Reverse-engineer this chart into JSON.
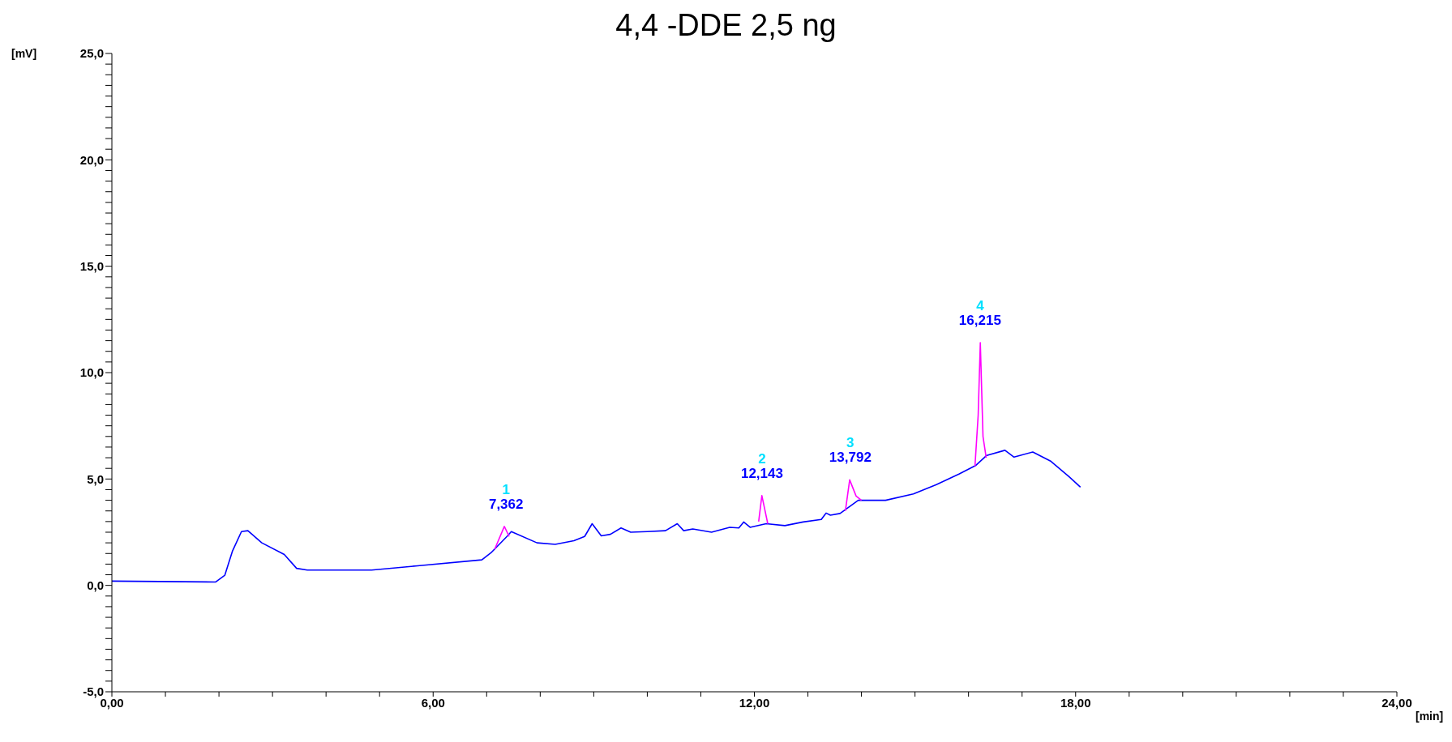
{
  "chart_data": {
    "type": "line",
    "title": "4,4 -DDE 2,5 ng",
    "xlabel": "[min]",
    "ylabel": "[mV]",
    "xlim": [
      0,
      24
    ],
    "ylim": [
      -5,
      25
    ],
    "xticks": [
      {
        "value": 0,
        "label": "0,00"
      },
      {
        "value": 1,
        "label": null
      },
      {
        "value": 2,
        "label": null
      },
      {
        "value": 3,
        "label": null
      },
      {
        "value": 4,
        "label": null
      },
      {
        "value": 5,
        "label": null
      },
      {
        "value": 6,
        "label": "6,00"
      },
      {
        "value": 7,
        "label": null
      },
      {
        "value": 8,
        "label": null
      },
      {
        "value": 9,
        "label": null
      },
      {
        "value": 10,
        "label": null
      },
      {
        "value": 11,
        "label": null
      },
      {
        "value": 12,
        "label": "12,00"
      },
      {
        "value": 13,
        "label": null
      },
      {
        "value": 14,
        "label": null
      },
      {
        "value": 15,
        "label": null
      },
      {
        "value": 16,
        "label": null
      },
      {
        "value": 17,
        "label": null
      },
      {
        "value": 18,
        "label": "18,00"
      },
      {
        "value": 19,
        "label": null
      },
      {
        "value": 20,
        "label": null
      },
      {
        "value": 21,
        "label": null
      },
      {
        "value": 22,
        "label": null
      },
      {
        "value": 23,
        "label": null
      },
      {
        "value": 24,
        "label": "24,00"
      }
    ],
    "yticks": [
      {
        "value": -5,
        "label": "-5,0"
      },
      {
        "value": -4.5,
        "label": null
      },
      {
        "value": -4,
        "label": null
      },
      {
        "value": -3.5,
        "label": null
      },
      {
        "value": -3,
        "label": null
      },
      {
        "value": -2.5,
        "label": null
      },
      {
        "value": -2,
        "label": null
      },
      {
        "value": -1.5,
        "label": null
      },
      {
        "value": -1,
        "label": null
      },
      {
        "value": -0.5,
        "label": null
      },
      {
        "value": 0,
        "label": "0,0"
      },
      {
        "value": 0.5,
        "label": null
      },
      {
        "value": 1,
        "label": null
      },
      {
        "value": 1.5,
        "label": null
      },
      {
        "value": 2,
        "label": null
      },
      {
        "value": 2.5,
        "label": null
      },
      {
        "value": 3,
        "label": null
      },
      {
        "value": 3.5,
        "label": null
      },
      {
        "value": 4,
        "label": null
      },
      {
        "value": 4.5,
        "label": null
      },
      {
        "value": 5,
        "label": "5,0"
      },
      {
        "value": 5.5,
        "label": null
      },
      {
        "value": 6,
        "label": null
      },
      {
        "value": 6.5,
        "label": null
      },
      {
        "value": 7,
        "label": null
      },
      {
        "value": 7.5,
        "label": null
      },
      {
        "value": 8,
        "label": null
      },
      {
        "value": 8.5,
        "label": null
      },
      {
        "value": 9,
        "label": null
      },
      {
        "value": 9.5,
        "label": null
      },
      {
        "value": 10,
        "label": "10,0"
      },
      {
        "value": 10.5,
        "label": null
      },
      {
        "value": 11,
        "label": null
      },
      {
        "value": 11.5,
        "label": null
      },
      {
        "value": 12,
        "label": null
      },
      {
        "value": 12.5,
        "label": null
      },
      {
        "value": 13,
        "label": null
      },
      {
        "value": 13.5,
        "label": null
      },
      {
        "value": 14,
        "label": null
      },
      {
        "value": 14.5,
        "label": null
      },
      {
        "value": 15,
        "label": "15,0"
      },
      {
        "value": 15.5,
        "label": null
      },
      {
        "value": 16,
        "label": null
      },
      {
        "value": 16.5,
        "label": null
      },
      {
        "value": 17,
        "label": null
      },
      {
        "value": 17.5,
        "label": null
      },
      {
        "value": 18,
        "label": null
      },
      {
        "value": 18.5,
        "label": null
      },
      {
        "value": 19,
        "label": null
      },
      {
        "value": 19.5,
        "label": null
      },
      {
        "value": 20,
        "label": "20,0"
      },
      {
        "value": 20.5,
        "label": null
      },
      {
        "value": 21,
        "label": null
      },
      {
        "value": 21.5,
        "label": null
      },
      {
        "value": 22,
        "label": null
      },
      {
        "value": 22.5,
        "label": null
      },
      {
        "value": 23,
        "label": null
      },
      {
        "value": 23.5,
        "label": null
      },
      {
        "value": 24,
        "label": null
      },
      {
        "value": 24.5,
        "label": null
      },
      {
        "value": 25,
        "label": "25,0"
      }
    ],
    "marker": "none",
    "line_style": "solid",
    "series": [
      {
        "color": "#0000ff",
        "x": [
          0,
          1.94,
          2.11,
          2.25,
          2.42,
          2.54,
          2.8,
          3.22,
          3.45,
          3.65,
          4.85,
          5.71,
          6.91,
          7.08,
          7.39,
          7.46,
          7.94,
          8.28,
          8.63,
          8.83,
          8.97,
          9.14,
          9.31,
          9.51,
          9.69,
          10.0,
          10.34,
          10.56,
          10.68,
          10.85,
          11.2,
          11.54,
          11.71,
          11.8,
          11.92,
          12.22,
          12.57,
          12.91,
          13.25,
          13.34,
          13.42,
          13.6,
          13.94,
          14.45,
          14.97,
          15.4,
          15.82,
          16.13,
          16.34,
          16.68,
          16.85,
          17.2,
          17.54,
          17.88,
          18.09
        ],
        "values": [
          0.2,
          0.16,
          0.48,
          1.6,
          2.53,
          2.57,
          2.0,
          1.45,
          0.8,
          0.72,
          0.72,
          0.92,
          1.2,
          1.53,
          2.33,
          2.53,
          2.0,
          1.93,
          2.1,
          2.3,
          2.9,
          2.33,
          2.4,
          2.7,
          2.5,
          2.53,
          2.57,
          2.9,
          2.57,
          2.65,
          2.5,
          2.73,
          2.7,
          2.98,
          2.73,
          2.9,
          2.81,
          2.98,
          3.1,
          3.4,
          3.3,
          3.38,
          4.0,
          4.0,
          4.3,
          4.74,
          5.23,
          5.63,
          6.11,
          6.35,
          6.03,
          6.27,
          5.83,
          5.1,
          4.62
        ]
      },
      {
        "color": "#ff00ff",
        "x": [
          7.15,
          7.33,
          7.42,
          null,
          12.08,
          12.14,
          12.25,
          null,
          13.7,
          13.78,
          13.9,
          14.0,
          null,
          16.12,
          16.18,
          16.22,
          16.27,
          16.33
        ],
        "values": [
          1.7,
          2.77,
          2.3,
          null,
          3.0,
          4.22,
          2.9,
          null,
          3.5,
          4.96,
          4.2,
          4.0,
          null,
          5.6,
          8.0,
          11.41,
          7.0,
          6.0
        ]
      }
    ],
    "annotations": [
      {
        "text": "1\n7,362",
        "x": 7.362,
        "y": 2.77
      },
      {
        "text": "2\n12,143",
        "x": 12.143,
        "y": 4.22
      },
      {
        "text": "3\n13,792",
        "x": 13.792,
        "y": 4.96
      },
      {
        "text": "4\n16,215",
        "x": 16.215,
        "y": 11.41
      }
    ]
  }
}
